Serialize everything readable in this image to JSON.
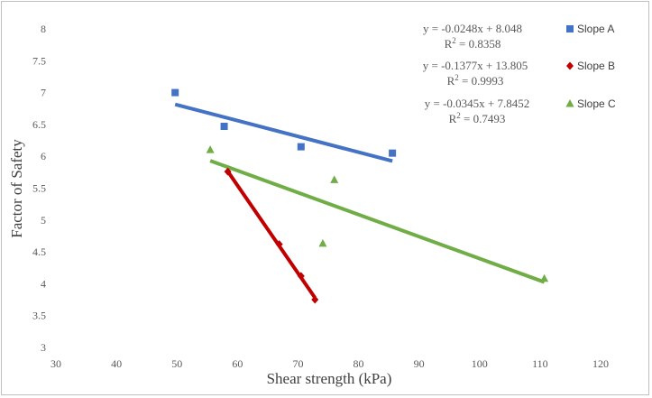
{
  "chart_data": {
    "type": "scatter",
    "title": "",
    "xlabel": "Shear strength (kPa)",
    "ylabel": "Factor of Safety",
    "xlim": [
      30,
      120
    ],
    "ylim": [
      3,
      8
    ],
    "xticks": [
      30,
      40,
      50,
      60,
      70,
      80,
      90,
      100,
      110,
      120
    ],
    "yticks": [
      3,
      3.5,
      4,
      4.5,
      5,
      5.5,
      6,
      6.5,
      7,
      7.5,
      8
    ],
    "grid": false,
    "legend_position": "right",
    "series": [
      {
        "name": "Slope A",
        "marker": "square",
        "color": "#4472c4",
        "x": [
          49.7,
          57.8,
          70.5,
          85.6
        ],
        "y": [
          7.0,
          6.47,
          6.15,
          6.05
        ],
        "trendline": {
          "slope": -0.0248,
          "intercept": 8.048,
          "x_range": [
            49.7,
            85.6
          ],
          "equation": "y = -0.0248x + 8.048",
          "r2_label": "R",
          "r2_value": " = 0.8358"
        }
      },
      {
        "name": "Slope B",
        "marker": "diamond",
        "color": "#c00000",
        "x": [
          58.4,
          66.9,
          70.5,
          72.8
        ],
        "y": [
          5.76,
          4.62,
          4.12,
          3.75
        ],
        "trendline": {
          "slope": -0.1377,
          "intercept": 13.805,
          "x_range": [
            58.4,
            72.8
          ],
          "equation": "y = -0.1377x + 13.805",
          "r2_label": "R",
          "r2_value": " = 0.9993"
        }
      },
      {
        "name": "Slope C",
        "marker": "triangle",
        "color": "#70ad47",
        "x": [
          55.5,
          74.1,
          76.0,
          110.7
        ],
        "y": [
          6.1,
          4.63,
          5.63,
          4.08
        ],
        "trendline": {
          "slope": -0.0345,
          "intercept": 7.8452,
          "x_range": [
            55.5,
            110.7
          ],
          "equation": "y = -0.0345x + 7.8452",
          "r2_label": "R",
          "r2_value": " = 0.7493"
        }
      }
    ]
  }
}
